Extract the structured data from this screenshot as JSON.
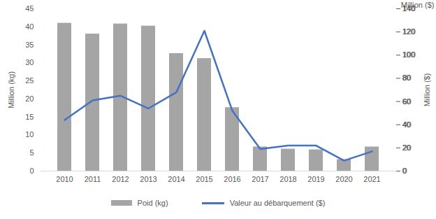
{
  "chart_data": {
    "type": "bar",
    "categories": [
      "2010",
      "2011",
      "2012",
      "2013",
      "2014",
      "2015",
      "2016",
      "2017",
      "2018",
      "2019",
      "2020",
      "2021"
    ],
    "series": [
      {
        "name": "Poid (kg)",
        "type": "bar",
        "color": "#a5a5a5",
        "values": [
          41,
          38,
          40.8,
          40.2,
          32.6,
          31.2,
          17.6,
          6.7,
          6.1,
          5.9,
          3.2,
          6.7
        ]
      },
      {
        "name": "Valeur au débarquement ($)",
        "type": "line",
        "color": "#4472c4",
        "axis": "y2",
        "values": [
          44,
          61,
          65,
          54,
          68,
          121,
          52,
          19,
          22,
          22,
          9,
          17
        ]
      }
    ],
    "ylabel": "Million (kg)",
    "y2label": "Million ($)",
    "ylim": [
      0,
      45
    ],
    "yticks": [
      0,
      5,
      10,
      15,
      20,
      25,
      30,
      35,
      40,
      45
    ],
    "y2lim": [
      0,
      140
    ],
    "y2ticks": [
      0,
      20,
      40,
      60,
      80,
      100,
      120,
      140
    ],
    "grid": false,
    "legend": "bottom"
  }
}
